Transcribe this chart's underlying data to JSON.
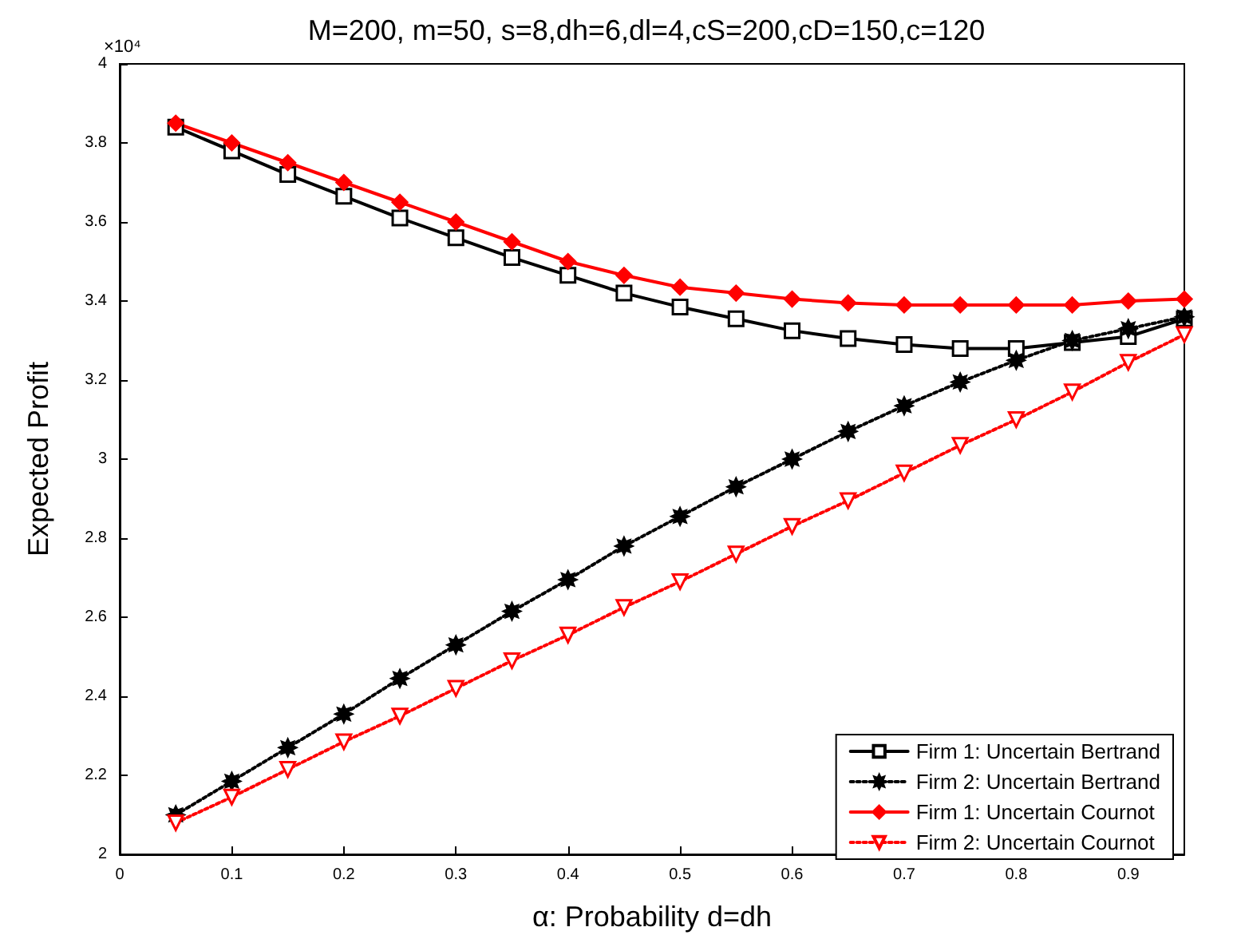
{
  "chart_data": {
    "type": "line",
    "title": "M=200, m=50, s=8,dh=6,dl=4,cS=200,cD=150,c=120",
    "xlabel": "α: Probability d=dh",
    "ylabel": "Expected Profit",
    "annotations": [
      "×10⁴"
    ],
    "x": [
      0.05,
      0.1,
      0.15,
      0.2,
      0.25,
      0.3,
      0.35,
      0.4,
      0.45,
      0.5,
      0.55,
      0.6,
      0.65,
      0.7,
      0.75,
      0.8,
      0.85,
      0.9,
      0.95
    ],
    "series": [
      {
        "name": "Firm 1: Uncertain Bertrand",
        "color": "#000000",
        "marker": "square",
        "line_style": "solid",
        "values": [
          3.84,
          3.78,
          3.72,
          3.665,
          3.61,
          3.56,
          3.51,
          3.465,
          3.42,
          3.385,
          3.355,
          3.325,
          3.305,
          3.29,
          3.28,
          3.28,
          3.295,
          3.31,
          3.355
        ]
      },
      {
        "name": "Firm 2: Uncertain Bertrand",
        "color": "#000000",
        "marker": "star",
        "line_style": "dotted",
        "values": [
          2.1,
          2.185,
          2.27,
          2.355,
          2.445,
          2.53,
          2.615,
          2.695,
          2.78,
          2.855,
          2.93,
          3.0,
          3.07,
          3.135,
          3.195,
          3.25,
          3.3,
          3.33,
          3.36
        ]
      },
      {
        "name": "Firm 1: Uncertain Cournot",
        "color": "#ff0000",
        "marker": "diamond",
        "line_style": "solid",
        "values": [
          3.85,
          3.8,
          3.75,
          3.7,
          3.65,
          3.6,
          3.55,
          3.5,
          3.465,
          3.435,
          3.42,
          3.405,
          3.395,
          3.39,
          3.39,
          3.39,
          3.39,
          3.4,
          3.405
        ]
      },
      {
        "name": "Firm 2: Uncertain Cournot",
        "color": "#ff0000",
        "marker": "triangle",
        "line_style": "dotted",
        "values": [
          2.08,
          2.145,
          2.215,
          2.285,
          2.35,
          2.42,
          2.49,
          2.555,
          2.625,
          2.69,
          2.76,
          2.83,
          2.895,
          2.965,
          3.035,
          3.1,
          3.17,
          3.245,
          3.315
        ]
      }
    ],
    "xlim": [
      0,
      0.95
    ],
    "xticks": [
      0,
      0.1,
      0.2,
      0.3,
      0.4,
      0.5,
      0.6,
      0.7,
      0.8,
      0.9
    ],
    "ylim": [
      2,
      4
    ],
    "yticks": [
      2,
      2.2,
      2.4,
      2.6,
      2.8,
      3,
      3.2,
      3.4,
      3.6,
      3.8,
      4
    ],
    "grid": false,
    "legend": "bottom right"
  }
}
